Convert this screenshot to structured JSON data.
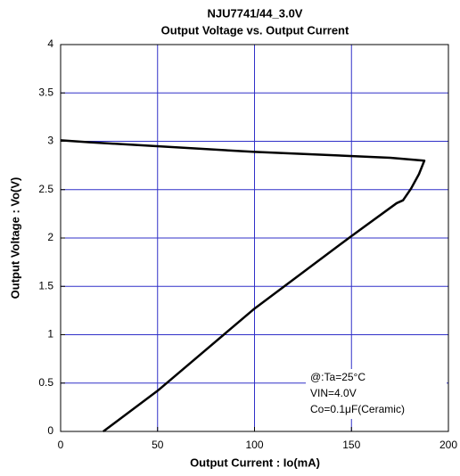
{
  "chart_data": {
    "type": "line",
    "title": "NJU7741/44_3.0V",
    "subtitle": "Output Voltage vs. Output Current",
    "x_label": "Output Current : Io(mA)",
    "y_label": "Output Voltage : Vo(V)",
    "annotations": [
      "@:Ta=25°C",
      "VIN=4.0V",
      "Co=0.1μF(Ceramic)"
    ],
    "x": [
      0,
      15,
      100,
      170,
      187.6,
      184.8,
      180.7,
      176.6,
      173.3,
      150,
      100,
      50,
      22
    ],
    "series": [
      {
        "name": "Vo",
        "color": "#000000",
        "values": [
          3.01,
          2.99,
          2.89,
          2.83,
          2.8,
          2.66,
          2.51,
          2.39,
          2.36,
          2.02,
          1.27,
          0.42,
          0
        ]
      }
    ],
    "xlim": [
      0,
      200
    ],
    "xticks": [
      0,
      50,
      100,
      150,
      200
    ],
    "ylim": [
      0,
      4
    ],
    "yticks": [
      0,
      0.5,
      1,
      1.5,
      2,
      2.5,
      3,
      3.5,
      4
    ],
    "grid": true
  }
}
